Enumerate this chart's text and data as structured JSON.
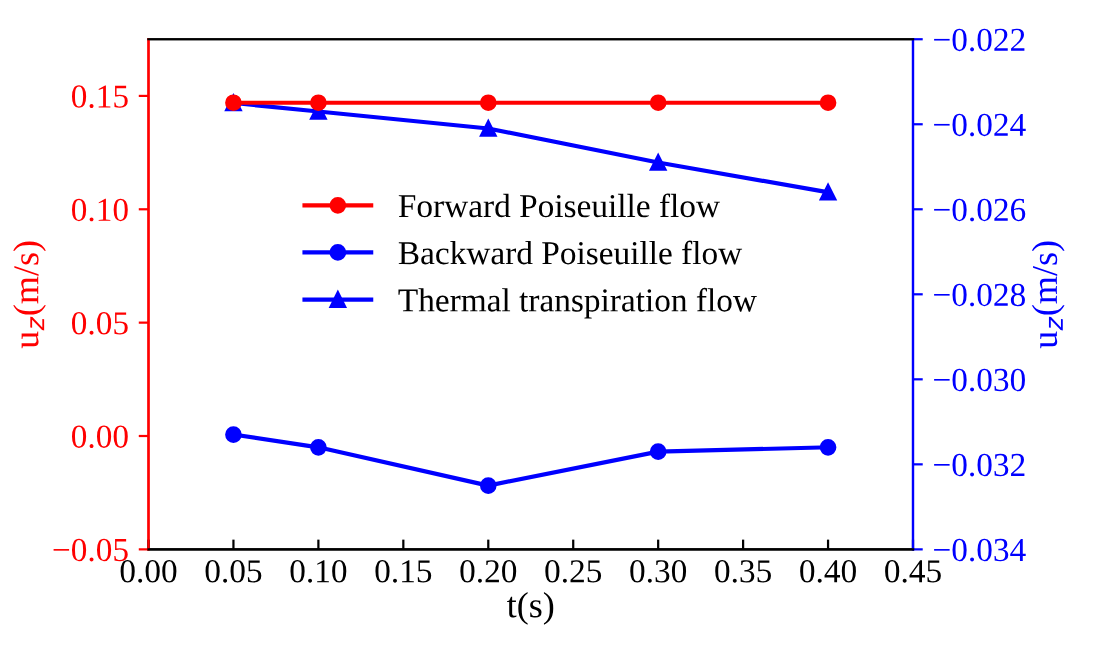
{
  "chart_data": {
    "type": "line",
    "xlabel": "t(s)",
    "ylabel": "u$_{z}$(m/s)",
    "y2label": "u$_{z}$(m/s)",
    "x": [
      0.05,
      0.1,
      0.2,
      0.3,
      0.4
    ],
    "series": [
      {
        "name": "Forward Poiseuille flow",
        "color": "#ff0000",
        "values": [
          0.147,
          0.147,
          0.147,
          0.147,
          0.147
        ],
        "marker": "circle"
      },
      {
        "name": "Backward Poiseuille flow",
        "color": "#0000ff",
        "axis": "y2",
        "values": [
          -0.0313,
          -0.0316,
          -0.0325,
          -0.0317,
          -0.0316
        ],
        "marker": "circle"
      },
      {
        "name": "Thermal transpiration flow",
        "color": "#0000ff",
        "axis": "y2",
        "values": [
          -0.0235,
          -0.0237,
          -0.0241,
          -0.0249,
          -0.0256
        ],
        "marker": "triangle"
      }
    ],
    "xlim": [
      0,
      0.45
    ],
    "xticks": [
      {
        "value": 0,
        "label": "0.00"
      },
      0.05,
      {
        "value": 0.1,
        "label": "0.10"
      },
      0.15,
      {
        "value": 0.2,
        "label": "0.20"
      },
      0.25,
      {
        "value": 0.3,
        "label": "0.30"
      },
      0.35,
      {
        "value": 0.4,
        "label": "0.40"
      },
      0.45
    ],
    "ylim": [
      -0.05,
      0.175
    ],
    "yticks": [
      {
        "value": -0.05,
        "label": "−0.05"
      },
      {
        "value": 0,
        "label": "0.00"
      },
      0.05,
      {
        "value": 0.1,
        "label": "0.10"
      },
      0.15
    ],
    "y2lim": [
      -0.034,
      -0.022
    ],
    "y2ticks": [
      {
        "value": -0.034,
        "label": "−0.034"
      },
      {
        "value": -0.032,
        "label": "−0.032"
      },
      {
        "value": -0.03,
        "label": "−0.030"
      },
      {
        "value": -0.028,
        "label": "−0.028"
      },
      {
        "value": -0.026,
        "label": "−0.026"
      },
      {
        "value": -0.024,
        "label": "−0.024"
      },
      {
        "value": -0.022,
        "label": "−0.022"
      }
    ],
    "grid": false,
    "legend": "center",
    "line_style": "solid"
  }
}
